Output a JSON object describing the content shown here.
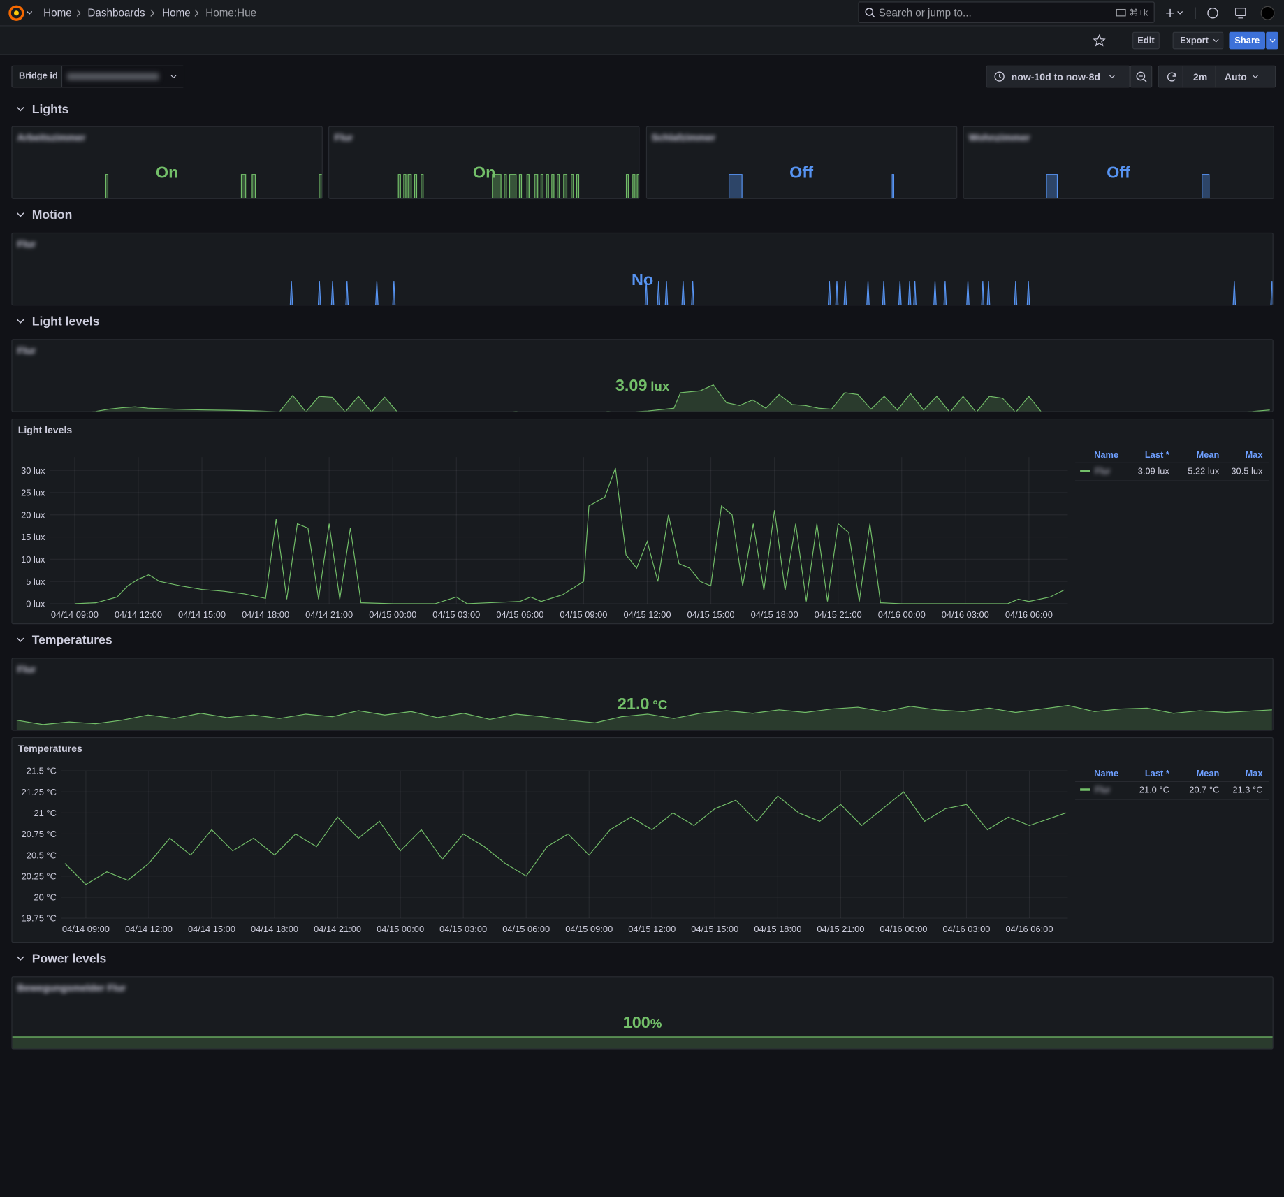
{
  "nav": {
    "breadcrumbs": [
      "Home",
      "Dashboards",
      "Home",
      "Home:Hue"
    ],
    "search": "Search or jump to...",
    "shortcut": "⌘+k"
  },
  "toolbar": {
    "edit": "Edit",
    "export": "Export",
    "share": "Share"
  },
  "variables": {
    "label": "Bridge id"
  },
  "time": {
    "range": "now-10d to now-8d",
    "refresh": "2m",
    "auto": "Auto"
  },
  "rows": [
    "Lights",
    "Motion",
    "Light levels",
    "Temperatures",
    "Power levels"
  ],
  "lights": [
    {
      "name": "Arbeitszimmer",
      "state": "On",
      "color": "#73bf69",
      "x": [
        "04/14 07:50",
        "04/14 22:15",
        "04/14 22:35",
        "04/15 19:10",
        "04/15 19:50",
        "04/15 20:50",
        "04/15 21:20",
        "04/16 07:10"
      ],
      "values": [
        0,
        1,
        0,
        1,
        0,
        1,
        0,
        1
      ]
    },
    {
      "name": "Flur",
      "state": "On",
      "color": "#73bf69",
      "x": [
        "04/14 07:50",
        "04/14 18:30",
        "04/14 18:50",
        "04/14 19:20",
        "04/14 19:40",
        "04/14 20:00",
        "04/14 20:30",
        "04/14 21:00",
        "04/14 21:20",
        "04/14 22:00",
        "04/14 22:20",
        "04/15 09:00",
        "04/15 10:20",
        "04/15 10:50",
        "04/15 11:10",
        "04/15 11:40",
        "04/15 12:40",
        "04/15 13:10",
        "04/15 13:30",
        "04/15 14:20",
        "04/15 14:40",
        "04/15 15:30",
        "04/15 16:00",
        "04/15 16:30",
        "04/15 16:50",
        "04/15 17:20",
        "04/15 17:40",
        "04/15 18:10",
        "04/15 18:30",
        "04/15 19:00",
        "04/15 19:20",
        "04/15 20:00",
        "04/15 20:30",
        "04/15 21:10",
        "04/15 21:30",
        "04/15 22:00",
        "04/15 22:20",
        "04/16 05:40",
        "04/16 06:00",
        "04/16 06:40",
        "04/16 07:00",
        "04/16 07:20"
      ],
      "values": [
        0,
        1,
        0,
        1,
        0,
        1,
        0,
        1,
        0,
        1,
        0,
        1,
        0,
        1,
        0,
        1,
        0,
        1,
        0,
        1,
        0,
        1,
        0,
        1,
        0,
        1,
        0,
        1,
        0,
        1,
        0,
        1,
        0,
        1,
        0,
        1,
        0,
        1,
        0,
        1,
        0,
        1
      ]
    },
    {
      "name": "Schlafzimmer",
      "state": "Off",
      "color": "#5794f2",
      "x": [
        "04/14 07:50",
        "04/14 20:30",
        "04/14 22:30",
        "04/15 21:40",
        "04/15 21:55"
      ],
      "values": [
        0,
        1,
        0,
        1,
        0
      ]
    },
    {
      "name": "Wohnzimmer",
      "state": "Off",
      "color": "#5794f2",
      "x": [
        "04/14 07:50",
        "04/14 20:35",
        "04/14 22:15",
        "04/15 20:35",
        "04/15 21:40"
      ],
      "values": [
        0,
        1,
        0,
        1,
        0
      ]
    }
  ],
  "motion": {
    "name": "Flur",
    "state": "No",
    "color": "#5794f2",
    "x": [
      "04/14 18:27",
      "04/14 19:31",
      "04/14 20:01",
      "04/14 20:34",
      "04/14 21:42",
      "04/14 22:21",
      "04/15 07:57",
      "04/15 08:25",
      "04/15 08:43",
      "04/15 09:21",
      "04/15 09:43",
      "04/15 14:55",
      "04/15 15:12",
      "04/15 15:31",
      "04/15 16:23",
      "04/15 16:59",
      "04/15 17:36",
      "04/15 17:58",
      "04/15 18:10",
      "04/15 18:56",
      "04/15 19:19",
      "04/15 20:11",
      "04/15 20:45",
      "04/15 20:58",
      "04/15 22:00",
      "04/15 22:29",
      "04/16 06:19",
      "04/16 07:45"
    ],
    "values": [
      1,
      1,
      1,
      1,
      1,
      1,
      1,
      1,
      1,
      1,
      1,
      1,
      1,
      1,
      1,
      1,
      1,
      1,
      1,
      1,
      1,
      1,
      1,
      1,
      1,
      1,
      1,
      1
    ]
  },
  "light_stat": {
    "name": "Flur",
    "value": "3.09",
    "unit": "lux"
  },
  "temp_stat": {
    "name": "Flur",
    "value": "21.0",
    "unit": "°C"
  },
  "power": {
    "name": "Bewegungsmelder Flur",
    "value": 100,
    "unit": "%"
  },
  "chart_data": [
    {
      "type": "line",
      "title": "Light levels",
      "grid": true,
      "x": [
        "04/14 09:00",
        "04/14 10:00",
        "04/14 11:00",
        "04/14 11:30",
        "04/14 12:00",
        "04/14 12:30",
        "04/14 13:00",
        "04/14 14:00",
        "04/14 15:00",
        "04/14 16:00",
        "04/14 17:00",
        "04/14 18:00",
        "04/14 18:30",
        "04/14 19:00",
        "04/14 19:30",
        "04/14 20:00",
        "04/14 20:30",
        "04/14 21:00",
        "04/14 21:30",
        "04/14 22:00",
        "04/14 22:30",
        "04/15 00:00",
        "04/15 02:00",
        "04/15 03:00",
        "04/15 03:30",
        "04/15 06:00",
        "04/15 06:30",
        "04/15 07:00",
        "04/15 08:00",
        "04/15 09:00",
        "04/15 09:15",
        "04/15 10:00",
        "04/15 10:30",
        "04/15 11:00",
        "04/15 11:30",
        "04/15 12:00",
        "04/15 12:30",
        "04/15 13:00",
        "04/15 13:30",
        "04/15 14:00",
        "04/15 14:30",
        "04/15 15:00",
        "04/15 15:30",
        "04/15 16:00",
        "04/15 16:30",
        "04/15 17:00",
        "04/15 17:30",
        "04/15 18:00",
        "04/15 18:30",
        "04/15 19:00",
        "04/15 19:30",
        "04/15 20:00",
        "04/15 20:30",
        "04/15 21:00",
        "04/15 21:30",
        "04/15 22:00",
        "04/15 22:30",
        "04/15 23:00",
        "04/16 00:00",
        "04/16 05:00",
        "04/16 05:30",
        "04/16 06:00",
        "04/16 07:00",
        "04/16 07:40"
      ],
      "series": [
        {
          "name": "Flur",
          "color": "#73bf69",
          "values": [
            0,
            0.2,
            1.5,
            4,
            5.5,
            6.5,
            5,
            4,
            3.2,
            2.8,
            2.2,
            1.2,
            19,
            1,
            18,
            17,
            1,
            18,
            1,
            17,
            0.2,
            0,
            0,
            1.5,
            0,
            0.5,
            1.5,
            0.5,
            2,
            5,
            22,
            24,
            30.5,
            11,
            8,
            14,
            5,
            20,
            9,
            8,
            5,
            4,
            22,
            20,
            4,
            18,
            3,
            21,
            3,
            18,
            0.5,
            18,
            0.5,
            18,
            16,
            0.5,
            18,
            0.2,
            0,
            0,
            1,
            0.5,
            1.5,
            3.09
          ]
        }
      ],
      "xlim": [
        "04/14 07:50",
        "04/16 07:50"
      ],
      "xticks": [
        "04/14 09:00",
        "04/14 12:00",
        "04/14 15:00",
        "04/14 18:00",
        "04/14 21:00",
        "04/15 00:00",
        "04/15 03:00",
        "04/15 06:00",
        "04/15 09:00",
        "04/15 12:00",
        "04/15 15:00",
        "04/15 18:00",
        "04/15 21:00",
        "04/16 00:00",
        "04/16 03:00",
        "04/16 06:00"
      ],
      "ylim": [
        0,
        33
      ],
      "yticks": [
        {
          "value": 0,
          "label": "0 lux"
        },
        {
          "value": 5,
          "label": "5 lux"
        },
        {
          "value": 10,
          "label": "10 lux"
        },
        {
          "value": 15,
          "label": "15 lux"
        },
        {
          "value": 20,
          "label": "20 lux"
        },
        {
          "value": 25,
          "label": "25 lux"
        },
        {
          "value": 30,
          "label": "30 lux"
        }
      ],
      "legend": {
        "columns": [
          "Name",
          "Last *",
          "Mean",
          "Max"
        ],
        "rows": [
          [
            "3.09 lux",
            "5.22 lux",
            "30.5 lux"
          ]
        ]
      }
    },
    {
      "type": "line",
      "title": "Temperatures",
      "grid": true,
      "x": [
        "04/14 08:00",
        "04/14 09:00",
        "04/14 10:00",
        "04/14 11:00",
        "04/14 12:00",
        "04/14 13:00",
        "04/14 14:00",
        "04/14 15:00",
        "04/14 16:00",
        "04/14 17:00",
        "04/14 18:00",
        "04/14 19:00",
        "04/14 20:00",
        "04/14 21:00",
        "04/14 22:00",
        "04/14 23:00",
        "04/15 00:00",
        "04/15 01:00",
        "04/15 02:00",
        "04/15 03:00",
        "04/15 04:00",
        "04/15 05:00",
        "04/15 06:00",
        "04/15 07:00",
        "04/15 08:00",
        "04/15 09:00",
        "04/15 10:00",
        "04/15 11:00",
        "04/15 12:00",
        "04/15 13:00",
        "04/15 14:00",
        "04/15 15:00",
        "04/15 16:00",
        "04/15 17:00",
        "04/15 18:00",
        "04/15 19:00",
        "04/15 20:00",
        "04/15 21:00",
        "04/15 22:00",
        "04/15 23:00",
        "04/16 00:00",
        "04/16 01:00",
        "04/16 02:00",
        "04/16 03:00",
        "04/16 04:00",
        "04/16 05:00",
        "04/16 06:00",
        "04/16 07:45"
      ],
      "series": [
        {
          "name": "Flur",
          "color": "#73bf69",
          "values": [
            20.4,
            20.15,
            20.3,
            20.2,
            20.4,
            20.7,
            20.5,
            20.8,
            20.55,
            20.7,
            20.5,
            20.75,
            20.6,
            20.95,
            20.7,
            20.9,
            20.55,
            20.8,
            20.45,
            20.75,
            20.6,
            20.4,
            20.25,
            20.6,
            20.75,
            20.5,
            20.8,
            20.95,
            20.8,
            21.0,
            20.85,
            21.05,
            21.15,
            20.9,
            21.2,
            21.0,
            20.9,
            21.1,
            20.85,
            21.05,
            21.25,
            20.9,
            21.05,
            21.1,
            20.8,
            20.95,
            20.85,
            21.0
          ]
        }
      ],
      "xlim": [
        "04/14 07:50",
        "04/16 07:50"
      ],
      "xticks": [
        "04/14 09:00",
        "04/14 12:00",
        "04/14 15:00",
        "04/14 18:00",
        "04/14 21:00",
        "04/15 00:00",
        "04/15 03:00",
        "04/15 06:00",
        "04/15 09:00",
        "04/15 12:00",
        "04/15 15:00",
        "04/15 18:00",
        "04/15 21:00",
        "04/16 00:00",
        "04/16 03:00",
        "04/16 06:00"
      ],
      "ylim": [
        19.75,
        21.5
      ],
      "yticks": [
        {
          "value": 19.75,
          "label": "19.75 °C"
        },
        {
          "value": 20,
          "label": "20 °C"
        },
        {
          "value": 20.25,
          "label": "20.25 °C"
        },
        {
          "value": 20.5,
          "label": "20.5 °C"
        },
        {
          "value": 20.75,
          "label": "20.75 °C"
        },
        {
          "value": 21,
          "label": "21 °C"
        },
        {
          "value": 21.25,
          "label": "21.25 °C"
        },
        {
          "value": 21.5,
          "label": "21.5 °C"
        }
      ],
      "legend": {
        "columns": [
          "Name",
          "Last *",
          "Mean",
          "Max"
        ],
        "rows": [
          [
            "21.0 °C",
            "20.7 °C",
            "21.3 °C"
          ]
        ]
      }
    }
  ]
}
